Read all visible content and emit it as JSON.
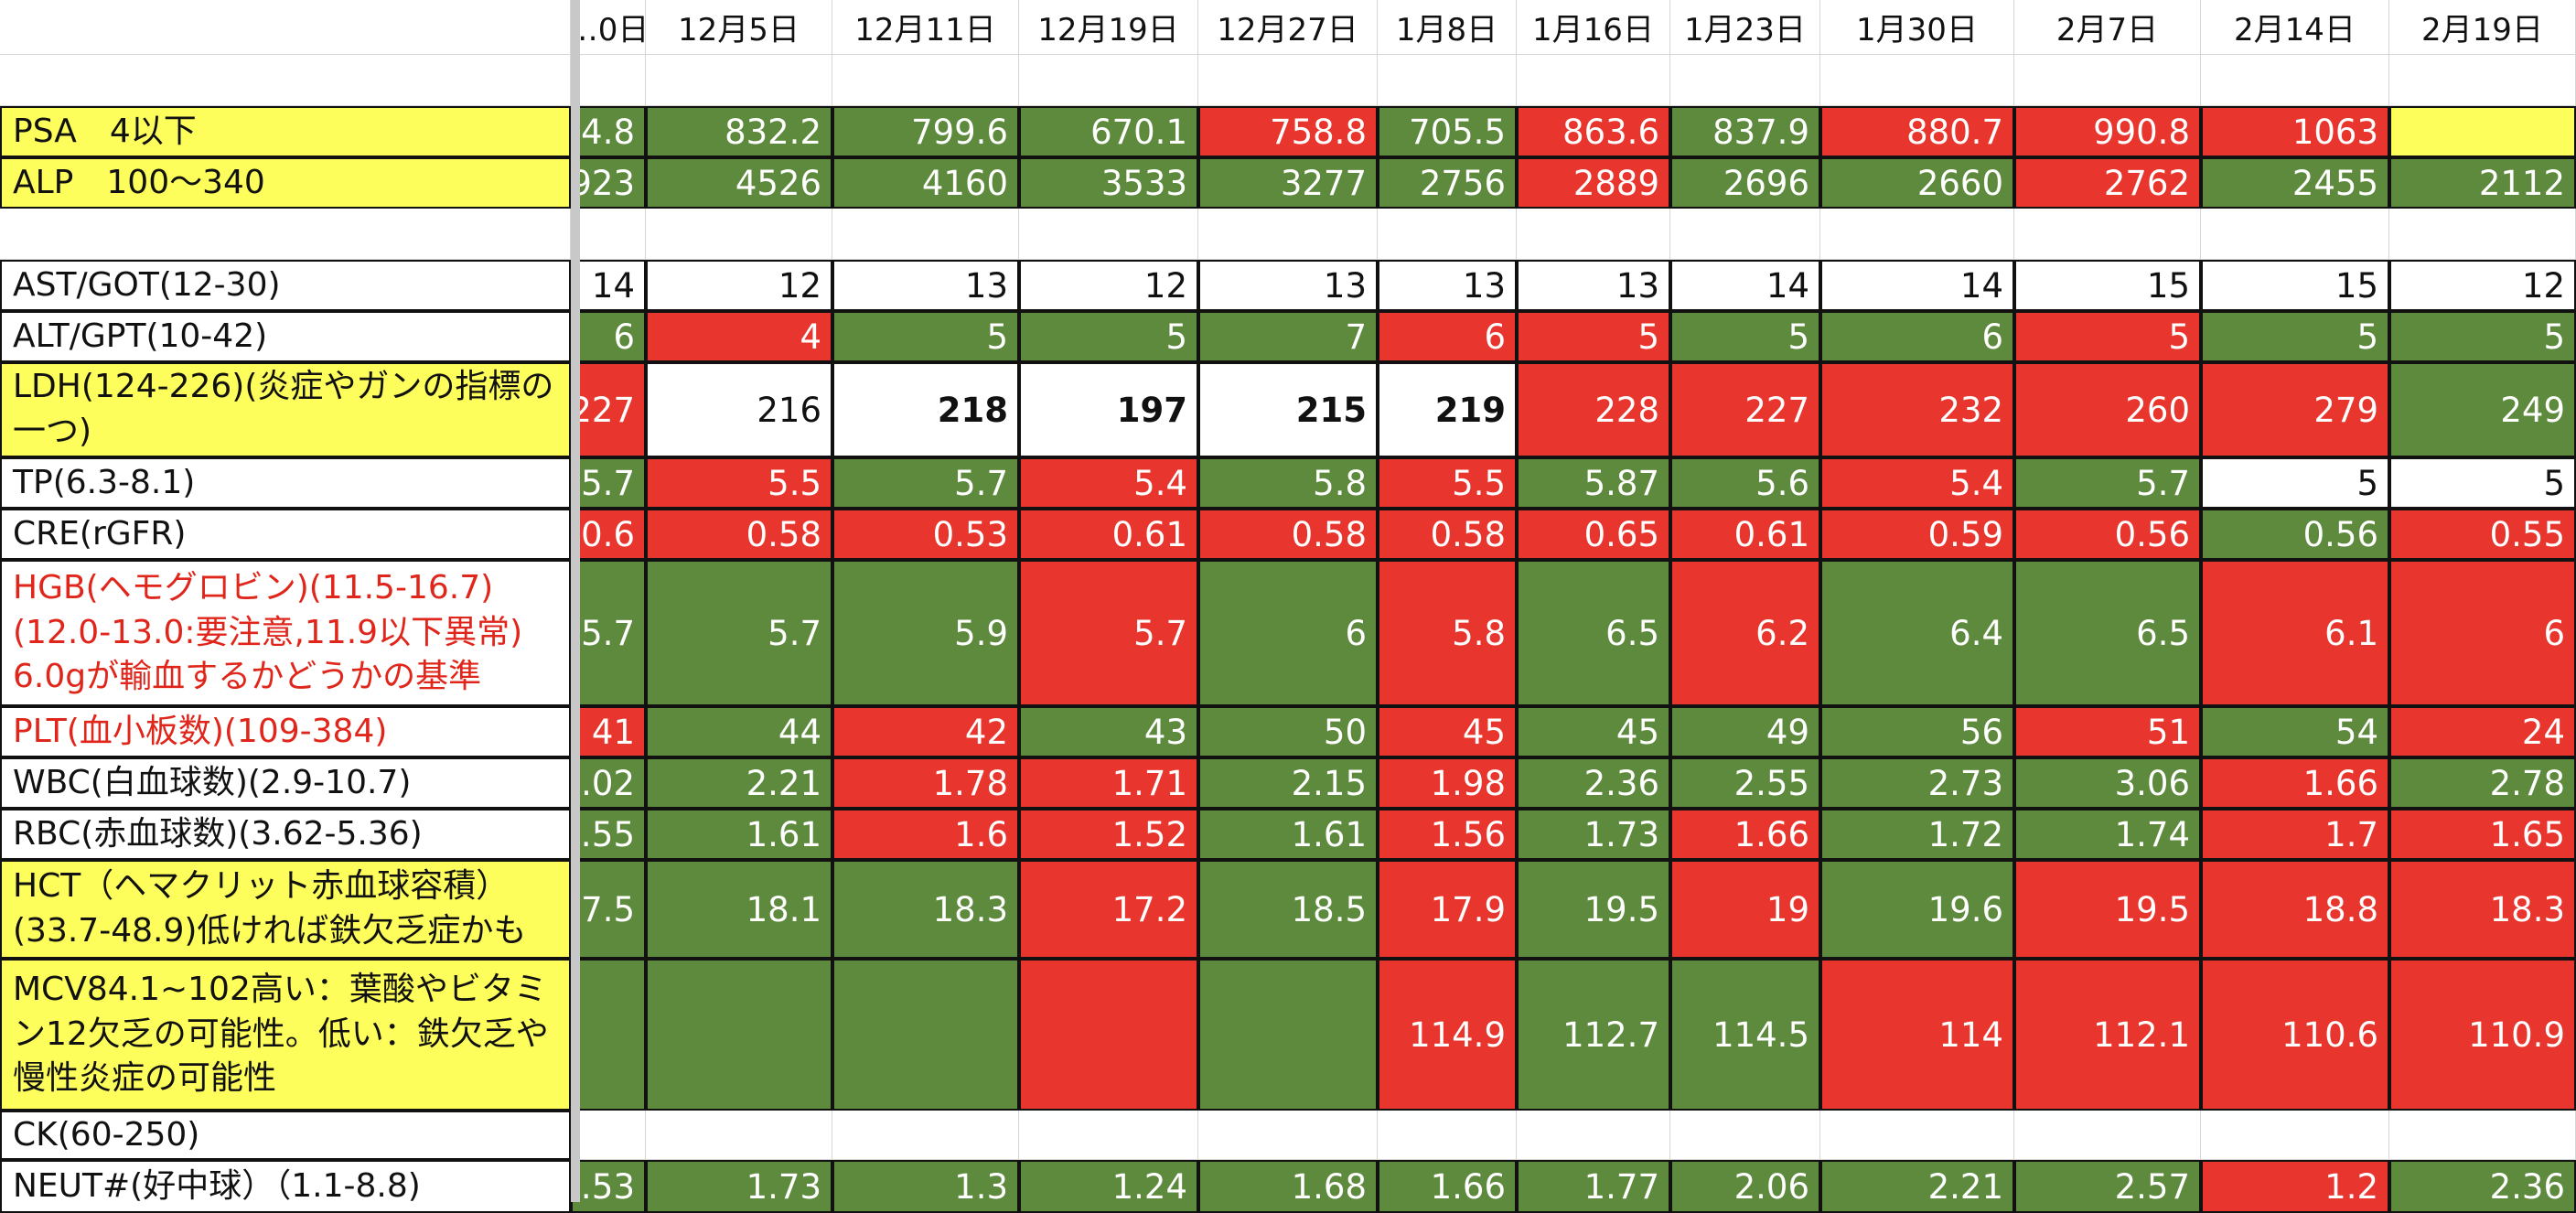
{
  "colors": {
    "green": "#5e8a3d",
    "red": "#e8352d",
    "yellow": "#fdfe5b",
    "red_text": "#e0261b",
    "white": "#ffffff"
  },
  "columns": [
    "…0日",
    "12月5日",
    "12月11日",
    "12月19日",
    "12月27日",
    "1月8日",
    "1月16日",
    "1月23日",
    "1月30日",
    "2月7日",
    "2月14日",
    "2月19日"
  ],
  "rows": [
    {
      "label": "",
      "cells": []
    },
    {
      "label": "PSA　4以下",
      "label_bg": "yellow",
      "cells": [
        {
          "v": "…4.8",
          "c": "green"
        },
        {
          "v": "832.2",
          "c": "green"
        },
        {
          "v": "799.6",
          "c": "green"
        },
        {
          "v": "670.1",
          "c": "green"
        },
        {
          "v": "758.8",
          "c": "red"
        },
        {
          "v": "705.5",
          "c": "green"
        },
        {
          "v": "863.6",
          "c": "red"
        },
        {
          "v": "837.9",
          "c": "green"
        },
        {
          "v": "880.7",
          "c": "red"
        },
        {
          "v": "990.8",
          "c": "red"
        },
        {
          "v": "1063",
          "c": "red"
        },
        {
          "v": "",
          "c": "yellow"
        }
      ]
    },
    {
      "label": "ALP　100〜340",
      "label_bg": "yellow",
      "cells": [
        {
          "v": "…923",
          "c": "green"
        },
        {
          "v": "4526",
          "c": "green"
        },
        {
          "v": "4160",
          "c": "green"
        },
        {
          "v": "3533",
          "c": "green"
        },
        {
          "v": "3277",
          "c": "green"
        },
        {
          "v": "2756",
          "c": "green"
        },
        {
          "v": "2889",
          "c": "red"
        },
        {
          "v": "2696",
          "c": "green"
        },
        {
          "v": "2660",
          "c": "green"
        },
        {
          "v": "2762",
          "c": "red"
        },
        {
          "v": "2455",
          "c": "green"
        },
        {
          "v": "2112",
          "c": "green"
        }
      ]
    },
    {
      "label": "",
      "cells": []
    },
    {
      "label": "AST/GOT(12-30)",
      "cells": [
        {
          "v": "14",
          "c": "white"
        },
        {
          "v": "12",
          "c": "white"
        },
        {
          "v": "13",
          "c": "white"
        },
        {
          "v": "12",
          "c": "white"
        },
        {
          "v": "13",
          "c": "white"
        },
        {
          "v": "13",
          "c": "white"
        },
        {
          "v": "13",
          "c": "white"
        },
        {
          "v": "14",
          "c": "white"
        },
        {
          "v": "14",
          "c": "white"
        },
        {
          "v": "15",
          "c": "white"
        },
        {
          "v": "15",
          "c": "white"
        },
        {
          "v": "12",
          "c": "white"
        }
      ]
    },
    {
      "label": "ALT/GPT(10-42)",
      "cells": [
        {
          "v": "6",
          "c": "green"
        },
        {
          "v": "4",
          "c": "red"
        },
        {
          "v": "5",
          "c": "green"
        },
        {
          "v": "5",
          "c": "green"
        },
        {
          "v": "7",
          "c": "green"
        },
        {
          "v": "6",
          "c": "red"
        },
        {
          "v": "5",
          "c": "red"
        },
        {
          "v": "5",
          "c": "green"
        },
        {
          "v": "6",
          "c": "green"
        },
        {
          "v": "5",
          "c": "red"
        },
        {
          "v": "5",
          "c": "green"
        },
        {
          "v": "5",
          "c": "green"
        }
      ]
    },
    {
      "label": "LDH(124-226)(炎症やガンの指標の一つ)",
      "label_bg": "yellow",
      "cells": [
        {
          "v": "227",
          "c": "red"
        },
        {
          "v": "216",
          "c": "white"
        },
        {
          "v": "218",
          "c": "white"
        },
        {
          "v": "197",
          "c": "white"
        },
        {
          "v": "215",
          "c": "white"
        },
        {
          "v": "219",
          "c": "white"
        },
        {
          "v": "228",
          "c": "red"
        },
        {
          "v": "227",
          "c": "red"
        },
        {
          "v": "232",
          "c": "red"
        },
        {
          "v": "260",
          "c": "red"
        },
        {
          "v": "279",
          "c": "red"
        },
        {
          "v": "249",
          "c": "green"
        }
      ]
    },
    {
      "label": "TP(6.3-8.1)",
      "cells": [
        {
          "v": "…5.7",
          "c": "green"
        },
        {
          "v": "5.5",
          "c": "red"
        },
        {
          "v": "5.7",
          "c": "green"
        },
        {
          "v": "5.4",
          "c": "red"
        },
        {
          "v": "5.8",
          "c": "green"
        },
        {
          "v": "5.5",
          "c": "red"
        },
        {
          "v": "5.87",
          "c": "green"
        },
        {
          "v": "5.6",
          "c": "green"
        },
        {
          "v": "5.4",
          "c": "red"
        },
        {
          "v": "5.7",
          "c": "green"
        },
        {
          "v": "5",
          "c": "white"
        },
        {
          "v": "5",
          "c": "white"
        }
      ]
    },
    {
      "label": "CRE(rGFR)",
      "cells": [
        {
          "v": "…0.6",
          "c": "red"
        },
        {
          "v": "0.58",
          "c": "red"
        },
        {
          "v": "0.53",
          "c": "red"
        },
        {
          "v": "0.61",
          "c": "red"
        },
        {
          "v": "0.58",
          "c": "red"
        },
        {
          "v": "0.58",
          "c": "red"
        },
        {
          "v": "0.65",
          "c": "red"
        },
        {
          "v": "0.61",
          "c": "red"
        },
        {
          "v": "0.59",
          "c": "red"
        },
        {
          "v": "0.56",
          "c": "red"
        },
        {
          "v": "0.56",
          "c": "green"
        },
        {
          "v": "0.55",
          "c": "red"
        }
      ]
    },
    {
      "label": "HGB(ヘモグロビン)(11.5-16.7)\n(12.0-13.0:要注意,11.9以下異常)\n6.0gが輸血するかどうかの基準",
      "label_red": true,
      "cells": [
        {
          "v": "…5.7",
          "c": "green"
        },
        {
          "v": "5.7",
          "c": "green"
        },
        {
          "v": "5.9",
          "c": "green"
        },
        {
          "v": "5.7",
          "c": "red"
        },
        {
          "v": "6",
          "c": "green"
        },
        {
          "v": "5.8",
          "c": "red"
        },
        {
          "v": "6.5",
          "c": "green"
        },
        {
          "v": "6.2",
          "c": "red"
        },
        {
          "v": "6.4",
          "c": "green"
        },
        {
          "v": "6.5",
          "c": "green"
        },
        {
          "v": "6.1",
          "c": "red"
        },
        {
          "v": "6",
          "c": "red"
        }
      ]
    },
    {
      "label": "PLT(血小板数)(109-384)",
      "label_red": true,
      "cells": [
        {
          "v": "41",
          "c": "red"
        },
        {
          "v": "44",
          "c": "green"
        },
        {
          "v": "42",
          "c": "red"
        },
        {
          "v": "43",
          "c": "green"
        },
        {
          "v": "50",
          "c": "green"
        },
        {
          "v": "45",
          "c": "red"
        },
        {
          "v": "45",
          "c": "green"
        },
        {
          "v": "49",
          "c": "green"
        },
        {
          "v": "56",
          "c": "green"
        },
        {
          "v": "51",
          "c": "red"
        },
        {
          "v": "54",
          "c": "green"
        },
        {
          "v": "24",
          "c": "red"
        }
      ]
    },
    {
      "label": "WBC(白血球数)(2.9-10.7)",
      "cells": [
        {
          "v": "…2.02",
          "c": "green"
        },
        {
          "v": "2.21",
          "c": "green"
        },
        {
          "v": "1.78",
          "c": "red"
        },
        {
          "v": "1.71",
          "c": "red"
        },
        {
          "v": "2.15",
          "c": "green"
        },
        {
          "v": "1.98",
          "c": "red"
        },
        {
          "v": "2.36",
          "c": "green"
        },
        {
          "v": "2.55",
          "c": "green"
        },
        {
          "v": "2.73",
          "c": "green"
        },
        {
          "v": "3.06",
          "c": "green"
        },
        {
          "v": "1.66",
          "c": "red"
        },
        {
          "v": "2.78",
          "c": "green"
        }
      ]
    },
    {
      "label": "RBC(赤血球数)(3.62-5.36)",
      "cells": [
        {
          "v": "…55",
          "c": "green"
        },
        {
          "v": "1.61",
          "c": "green"
        },
        {
          "v": "1.6",
          "c": "red"
        },
        {
          "v": "1.52",
          "c": "red"
        },
        {
          "v": "1.61",
          "c": "green"
        },
        {
          "v": "1.56",
          "c": "red"
        },
        {
          "v": "1.73",
          "c": "green"
        },
        {
          "v": "1.66",
          "c": "red"
        },
        {
          "v": "1.72",
          "c": "green"
        },
        {
          "v": "1.74",
          "c": "green"
        },
        {
          "v": "1.7",
          "c": "red"
        },
        {
          "v": "1.65",
          "c": "red"
        }
      ]
    },
    {
      "label": "HCT（ヘマクリット赤血球容積）\n(33.7-48.9)低ければ鉄欠乏症かも",
      "label_bg": "yellow",
      "cells": [
        {
          "v": "…7.5",
          "c": "green"
        },
        {
          "v": "18.1",
          "c": "green"
        },
        {
          "v": "18.3",
          "c": "green"
        },
        {
          "v": "17.2",
          "c": "red"
        },
        {
          "v": "18.5",
          "c": "green"
        },
        {
          "v": "17.9",
          "c": "red"
        },
        {
          "v": "19.5",
          "c": "green"
        },
        {
          "v": "19",
          "c": "red"
        },
        {
          "v": "19.6",
          "c": "green"
        },
        {
          "v": "19.5",
          "c": "red"
        },
        {
          "v": "18.8",
          "c": "red"
        },
        {
          "v": "18.3",
          "c": "red"
        }
      ]
    },
    {
      "label": "MCV84.1~102高い：葉酸やビタミン12欠乏の可能性。低い：鉄欠乏や慢性炎症の可能性",
      "label_bg": "yellow",
      "cells": [
        {
          "v": "",
          "c": "green"
        },
        {
          "v": "",
          "c": "green"
        },
        {
          "v": "",
          "c": "green"
        },
        {
          "v": "",
          "c": "red"
        },
        {
          "v": "",
          "c": "green"
        },
        {
          "v": "114.9",
          "c": "red"
        },
        {
          "v": "112.7",
          "c": "green"
        },
        {
          "v": "114.5",
          "c": "green"
        },
        {
          "v": "114",
          "c": "red"
        },
        {
          "v": "112.1",
          "c": "red"
        },
        {
          "v": "110.6",
          "c": "red"
        },
        {
          "v": "110.9",
          "c": "red"
        }
      ]
    },
    {
      "label": "CK(60-250)",
      "cells": []
    },
    {
      "label": "NEUT#(好中球）（1.1-8.8)",
      "cells": [
        {
          "v": "…53",
          "c": "green"
        },
        {
          "v": "1.73",
          "c": "green"
        },
        {
          "v": "1.3",
          "c": "green"
        },
        {
          "v": "1.24",
          "c": "green"
        },
        {
          "v": "1.68",
          "c": "green"
        },
        {
          "v": "1.66",
          "c": "green"
        },
        {
          "v": "1.77",
          "c": "green"
        },
        {
          "v": "2.06",
          "c": "green"
        },
        {
          "v": "2.21",
          "c": "green"
        },
        {
          "v": "2.57",
          "c": "green"
        },
        {
          "v": "1.2",
          "c": "red"
        },
        {
          "v": "2.36",
          "c": "green"
        }
      ]
    }
  ]
}
